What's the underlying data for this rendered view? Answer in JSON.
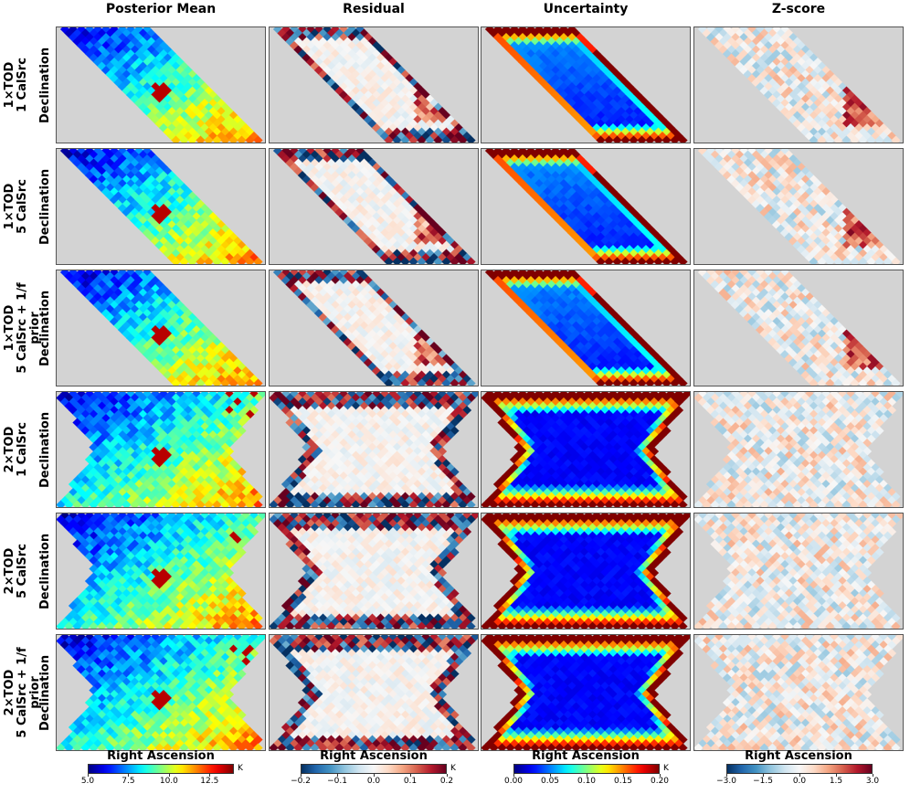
{
  "chart_data": {
    "type": "heatmap",
    "description_columns": [
      "Posterior Mean",
      "Residual",
      "Uncertainty",
      "Z-score"
    ],
    "rows": [
      {
        "line1": "1×TOD",
        "line2": "1 CalSrc",
        "shape": "parallelogram"
      },
      {
        "line1": "1×TOD",
        "line2": "5 CalSrc",
        "shape": "parallelogram"
      },
      {
        "line1": "1×TOD",
        "line2": "5 CalSrc + 1/f prior",
        "shape": "parallelogram"
      },
      {
        "line1": "2×TOD",
        "line2": "1 CalSrc",
        "shape": "hourglass"
      },
      {
        "line1": "2×TOD",
        "line2": "5 CalSrc",
        "shape": "hourglass"
      },
      {
        "line1": "2×TOD",
        "line2": "5 CalSrc + 1/f prior",
        "shape": "hourglass"
      }
    ],
    "ylabel": "Declination",
    "xlabel": "Right Ascension",
    "colorbars": [
      {
        "colormap": "jet",
        "range": [
          5.0,
          14.0
        ],
        "ticks": [
          "5.0",
          "7.5",
          "10.0",
          "12.5"
        ],
        "tick_values": [
          5.0,
          7.5,
          10.0,
          12.5
        ],
        "unit": "K"
      },
      {
        "colormap": "RdBu_r",
        "range": [
          -0.2,
          0.2
        ],
        "ticks": [
          "−0.2",
          "−0.1",
          "0.0",
          "0.1",
          "0.2"
        ],
        "tick_values": [
          -0.2,
          -0.1,
          0.0,
          0.1,
          0.2
        ],
        "unit": "K"
      },
      {
        "colormap": "jet",
        "range": [
          0.0,
          0.2
        ],
        "ticks": [
          "0.00",
          "0.05",
          "0.10",
          "0.15",
          "0.20"
        ],
        "tick_values": [
          0.0,
          0.05,
          0.1,
          0.15,
          0.2
        ],
        "unit": "K"
      },
      {
        "colormap": "RdBu_r",
        "range": [
          -3.0,
          3.0
        ],
        "ticks": [
          "−3.0",
          "−1.5",
          "0.0",
          "1.5",
          "3.0"
        ],
        "tick_values": [
          -3.0,
          -1.5,
          0.0,
          1.5,
          3.0
        ],
        "unit": ""
      }
    ]
  },
  "columns": [
    {
      "title": "Posterior Mean"
    },
    {
      "title": "Residual"
    },
    {
      "title": "Uncertainty"
    },
    {
      "title": "Z-score"
    }
  ],
  "axis": {
    "ylabel": "Declination",
    "xlabel": "Right Ascension"
  },
  "colors": {
    "background": "#ffffff",
    "panel_bg": "#d3d3d3"
  }
}
